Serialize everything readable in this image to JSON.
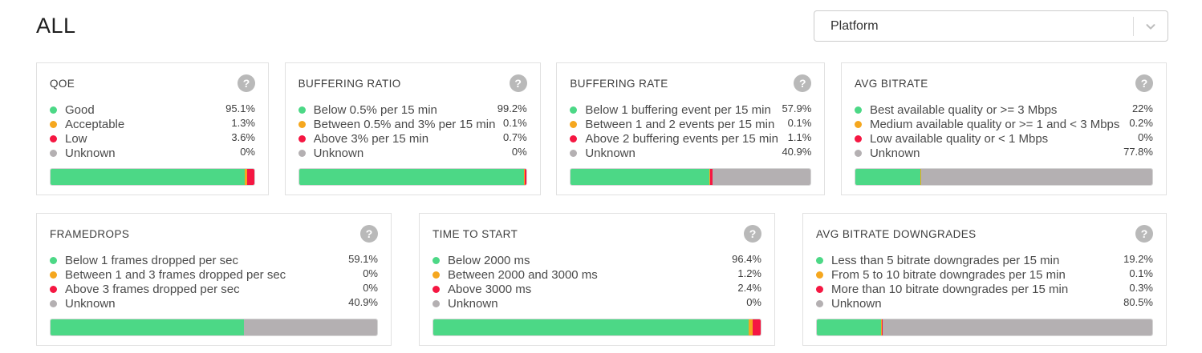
{
  "page": {
    "title": "ALL"
  },
  "filter": {
    "label": "Platform"
  },
  "icons": {
    "help": "?"
  },
  "metric_colors": {
    "green": "#4cd886",
    "orange": "#f5a71f",
    "red": "#f51742",
    "gray": "#b4b0b2"
  },
  "cards": [
    {
      "title": "QOE",
      "items": [
        {
          "label": "Good",
          "value": "95.1%",
          "pct": 95.1,
          "color": "green"
        },
        {
          "label": "Acceptable",
          "value": "1.3%",
          "pct": 1.3,
          "color": "orange"
        },
        {
          "label": "Low",
          "value": "3.6%",
          "pct": 3.6,
          "color": "red"
        },
        {
          "label": "Unknown",
          "value": "0%",
          "pct": 0,
          "color": "gray"
        }
      ]
    },
    {
      "title": "BUFFERING RATIO",
      "items": [
        {
          "label": "Below 0.5% per 15 min",
          "value": "99.2%",
          "pct": 99.2,
          "color": "green"
        },
        {
          "label": "Between 0.5% and 3% per 15 min",
          "value": "0.1%",
          "pct": 0.1,
          "color": "orange"
        },
        {
          "label": "Above 3% per 15 min",
          "value": "0.7%",
          "pct": 0.7,
          "color": "red"
        },
        {
          "label": "Unknown",
          "value": "0%",
          "pct": 0,
          "color": "gray"
        }
      ]
    },
    {
      "title": "BUFFERING RATE",
      "items": [
        {
          "label": "Below 1 buffering event per 15 min",
          "value": "57.9%",
          "pct": 57.9,
          "color": "green"
        },
        {
          "label": "Between 1 and 2 events per 15 min",
          "value": "0.1%",
          "pct": 0.1,
          "color": "orange"
        },
        {
          "label": "Above 2 buffering events per 15 min",
          "value": "1.1%",
          "pct": 1.1,
          "color": "red"
        },
        {
          "label": "Unknown",
          "value": "40.9%",
          "pct": 40.9,
          "color": "gray"
        }
      ]
    },
    {
      "title": "AVG BITRATE",
      "items": [
        {
          "label": "Best available quality or >= 3 Mbps",
          "value": "22%",
          "pct": 22,
          "color": "green"
        },
        {
          "label": "Medium available quality or >= 1 and < 3 Mbps",
          "value": "0.2%",
          "pct": 0.2,
          "color": "orange"
        },
        {
          "label": "Low available quality or < 1 Mbps",
          "value": "0%",
          "pct": 0,
          "color": "red"
        },
        {
          "label": "Unknown",
          "value": "77.8%",
          "pct": 77.8,
          "color": "gray"
        }
      ]
    },
    {
      "title": "FRAMEDROPS",
      "items": [
        {
          "label": "Below 1 frames dropped per sec",
          "value": "59.1%",
          "pct": 59.1,
          "color": "green"
        },
        {
          "label": "Between 1 and 3 frames dropped per sec",
          "value": "0%",
          "pct": 0,
          "color": "orange"
        },
        {
          "label": "Above 3 frames dropped per sec",
          "value": "0%",
          "pct": 0,
          "color": "red"
        },
        {
          "label": "Unknown",
          "value": "40.9%",
          "pct": 40.9,
          "color": "gray"
        }
      ]
    },
    {
      "title": "TIME TO START",
      "items": [
        {
          "label": "Below 2000 ms",
          "value": "96.4%",
          "pct": 96.4,
          "color": "green"
        },
        {
          "label": "Between 2000 and 3000 ms",
          "value": "1.2%",
          "pct": 1.2,
          "color": "orange"
        },
        {
          "label": "Above 3000 ms",
          "value": "2.4%",
          "pct": 2.4,
          "color": "red"
        },
        {
          "label": "Unknown",
          "value": "0%",
          "pct": 0,
          "color": "gray"
        }
      ]
    },
    {
      "title": "AVG BITRATE DOWNGRADES",
      "items": [
        {
          "label": "Less than 5 bitrate downgrades per 15 min",
          "value": "19.2%",
          "pct": 19.2,
          "color": "green"
        },
        {
          "label": "From 5 to 10 bitrate downgrades per 15 min",
          "value": "0.1%",
          "pct": 0.1,
          "color": "orange"
        },
        {
          "label": "More than 10 bitrate downgrades per 15 min",
          "value": "0.3%",
          "pct": 0.3,
          "color": "red"
        },
        {
          "label": "Unknown",
          "value": "80.5%",
          "pct": 80.5,
          "color": "gray"
        }
      ]
    }
  ]
}
